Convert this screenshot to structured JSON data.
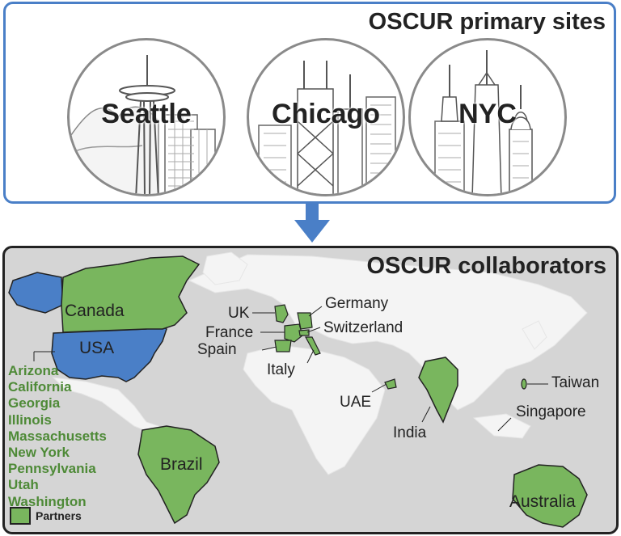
{
  "primary": {
    "title": "OSCUR primary sites",
    "sites": [
      {
        "label": "Seattle"
      },
      {
        "label": "Chicago"
      },
      {
        "label": "NYC"
      }
    ]
  },
  "collaborators": {
    "title": "OSCUR collaborators",
    "country_labels": {
      "canada": "Canada",
      "usa": "USA",
      "uk": "UK",
      "france": "France",
      "spain": "Spain",
      "germany": "Germany",
      "switzerland": "Switzerland",
      "italy": "Italy",
      "uae": "UAE",
      "india": "India",
      "taiwan": "Taiwan",
      "singapore": "Singapore",
      "brazil": "Brazil",
      "australia": "Australia"
    },
    "us_states": [
      "Arizona",
      "California",
      "Georgia",
      "Illinois",
      "Massachusetts",
      "New York",
      "Pennsylvania",
      "Utah",
      "Washington"
    ],
    "legend_label": "Partners"
  },
  "colors": {
    "partner_green": "#79b65e",
    "state_text_green": "#4e8a37",
    "us_blue": "#4a7fc7",
    "land": "#f4f4f4",
    "ocean": "#d5d5d5"
  }
}
